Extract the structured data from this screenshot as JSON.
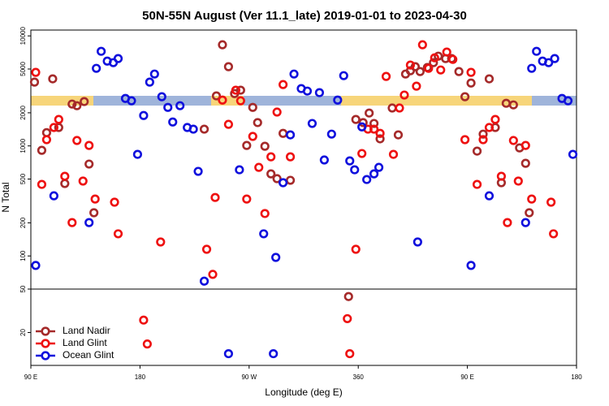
{
  "chart_data": [
    {
      "type": "scatter",
      "title": "50N-55N August (Ver 11.1_late)   2019-01-01 to 2023-04-30",
      "ylabel": "N Total",
      "xlim": [
        90,
        540
      ],
      "ylim": [
        50,
        11300
      ],
      "log_y": true,
      "yticks": [
        10000,
        5000,
        2000,
        1000,
        500,
        200,
        100,
        50
      ],
      "series": [
        {
          "color": "#a52a2a",
          "x": [
            93,
            99,
            103,
            108,
            113,
            118,
            124,
            128,
            134,
            138,
            142,
            233,
            243,
            248,
            253,
            258,
            263,
            268,
            273,
            277,
            283,
            288,
            293,
            298,
            304,
            358,
            364,
            369,
            373,
            378,
            388,
            393,
            399,
            403,
            407,
            411,
            417,
            422,
            426,
            432,
            437,
            443,
            448,
            453,
            458,
            463,
            468,
            473,
            478,
            482,
            488,
            493,
            498,
            501
          ],
          "values": [
            3800,
            912,
            1320,
            4070,
            1470,
            455,
            2400,
            2320,
            2530,
            684,
            247,
            1420,
            2850,
            8300,
            5250,
            2990,
            3210,
            1010,
            2240,
            1630,
            993,
            557,
            504,
            1300,
            487,
            1740,
            1630,
            1990,
            1600,
            1160,
            2210,
            1260,
            4500,
            4820,
            5250,
            4740,
            5160,
            5710,
            6540,
            6220,
            6220,
            4740,
            2800,
            3730,
            897,
            1280,
            4070,
            1470,
            463,
            2440,
            2360,
            960,
            695,
            247
          ]
        },
        {
          "color": "#ee1111",
          "x": [
            94,
            99,
            103,
            109,
            113,
            118,
            124,
            128,
            133,
            138,
            143,
            159,
            162,
            197,
            235,
            240,
            242,
            248,
            253,
            259,
            263,
            268,
            273,
            278,
            283,
            288,
            293,
            298,
            304,
            358,
            363,
            368,
            373,
            378,
            383,
            389,
            394,
            398,
            403,
            408,
            413,
            418,
            423,
            428,
            433,
            438,
            448,
            453,
            458,
            463,
            468,
            473,
            478,
            483,
            488,
            492,
            498,
            503,
            519,
            521
          ],
          "values": [
            4660,
            447,
            1140,
            1470,
            1740,
            530,
            201,
            1120,
            479,
            1010,
            329,
            308,
            159,
            134,
            115,
            68,
            340,
            2610,
            1570,
            3210,
            2570,
            329,
            1220,
            638,
            243,
            796,
            2030,
            3610,
            796,
            115,
            853,
            1420,
            1420,
            1300,
            4280,
            838,
            2210,
            2900,
            5430,
            3490,
            8300,
            5070,
            6320,
            4900,
            7130,
            6110,
            1140,
            4660,
            447,
            1140,
            1470,
            1740,
            530,
            201,
            1120,
            479,
            1010,
            329,
            308,
            159
          ]
        },
        {
          "color": "#1010dd",
          "x": [
            94,
            109,
            138,
            144,
            148,
            153,
            158,
            162,
            168,
            173,
            178,
            183,
            188,
            192,
            198,
            203,
            207,
            213,
            219,
            224,
            228,
            233,
            262,
            282,
            292,
            298,
            304,
            307,
            313,
            318,
            322,
            328,
            332,
            338,
            343,
            348,
            353,
            357,
            363,
            367,
            373,
            377,
            409,
            453,
            468,
            498,
            503,
            507,
            512,
            517,
            522,
            528,
            533,
            537
          ],
          "values": [
            82,
            352,
            201,
            5070,
            7240,
            5900,
            5710,
            6220,
            2700,
            2570,
            838,
            1890,
            3800,
            4500,
            2800,
            2240,
            1650,
            2320,
            1470,
            1420,
            587,
            59,
            607,
            159,
            97,
            463,
            1260,
            4500,
            3320,
            3150,
            1600,
            3050,
            745,
            1280,
            2610,
            4350,
            731,
            607,
            1490,
            495,
            557,
            638,
            134,
            82,
            352,
            201,
            5070,
            7240,
            5900,
            5710,
            6220,
            2700,
            2570,
            838
          ]
        }
      ]
    },
    {
      "type": "scatter",
      "xlabel": "Longitude (deg E)",
      "xlim": [
        90,
        540
      ],
      "ylim": [
        10,
        50
      ],
      "log_y": true,
      "yticks": [
        20
      ],
      "xticks": [
        {
          "value": 90,
          "label": "90 E"
        },
        {
          "value": 180,
          "label": "180"
        },
        {
          "value": 270,
          "label": "90 W"
        },
        360,
        {
          "value": 450,
          "label": "90 E"
        },
        {
          "value": 540,
          "label": "180"
        }
      ],
      "legend": "upper left",
      "series": [
        {
          "name": "Land Nadir",
          "color": "#a52a2a",
          "x": [
            352
          ],
          "values": [
            42.7
          ]
        },
        {
          "name": "Land Glint",
          "color": "#ee1111",
          "x": [
            183,
            186,
            351,
            353
          ],
          "values": [
            26,
            15.7,
            26.8,
            12.8
          ]
        },
        {
          "name": "Ocean Glint",
          "color": "#1010dd",
          "x": [
            253,
            290
          ],
          "values": [
            12.8,
            12.8
          ]
        }
      ]
    }
  ]
}
